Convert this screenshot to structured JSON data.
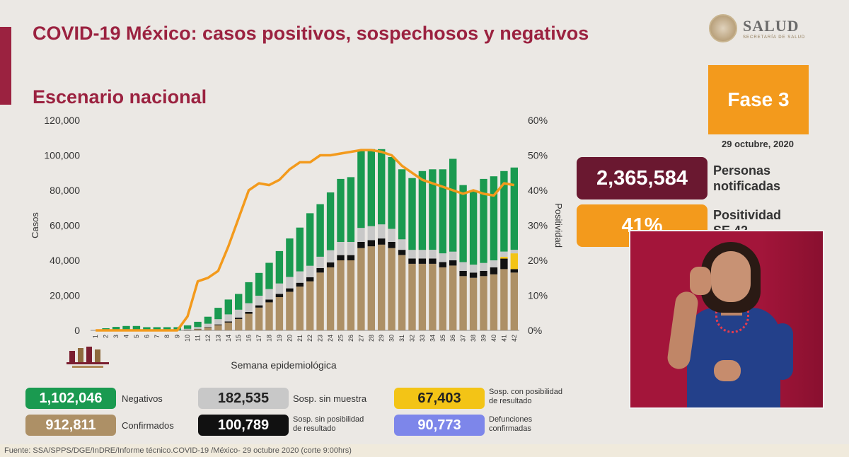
{
  "header": {
    "title": "COVID-19 México: casos positivos, sospechosos y negativos",
    "subtitle": "Escenario nacional",
    "logo_text": "SALUD",
    "logo_subtext": "SECRETARÍA DE SALUD"
  },
  "phase": {
    "label": "Fase 3",
    "date": "29 octubre, 2020"
  },
  "stats": {
    "notified_value": "2,365,584",
    "notified_label_1": "Personas",
    "notified_label_2": "notificadas",
    "positivity_value": "41%",
    "positivity_label_1": "Positividad",
    "positivity_label_2": "SE 42"
  },
  "legend": [
    {
      "value": "1,102,046",
      "label": "Negativos",
      "color": "#1a9a50"
    },
    {
      "value": "182,535",
      "label": "Sosp. sin muestra",
      "color": "#c8c8c8"
    },
    {
      "value": "67,403",
      "label_1": "Sosp. con posibilidad",
      "label_2": "de resultado",
      "color": "#f3c416"
    },
    {
      "value": "912,811",
      "label": "Confirmados",
      "color": "#ad9066"
    },
    {
      "value": "100,789",
      "label_1": "Sosp. sin posibilidad",
      "label_2": "de resultado",
      "color": "#111111"
    },
    {
      "value": "90,773",
      "label_1": "Defunciones",
      "label_2": "confirmadas",
      "color": "#7d86ea"
    }
  ],
  "footer": "Fuente: SSA/SPPS/DGE/InDRE/Informe técnico.COVID-19 /México- 29 octubre 2020 (corte 9:00hrs)",
  "colors": {
    "brand": "#9b2240",
    "phase": "#f39a1c",
    "notified_box": "#6a1830",
    "positivity_line": "#f39a1c"
  },
  "video": {
    "description_icon": "sign-language-interpreter"
  },
  "chart_data": {
    "type": "bar",
    "stacked": true,
    "xlabel": "Semana epidemiológica",
    "ylabel": "Casos",
    "y2label": "Positividad",
    "ylim": [
      0,
      120000
    ],
    "y2lim": [
      0,
      60
    ],
    "yticks": [
      "0",
      "20,000",
      "40,000",
      "60,000",
      "80,000",
      "100,000",
      "120,000"
    ],
    "y2ticks": [
      "0%",
      "10%",
      "20%",
      "30%",
      "40%",
      "50%",
      "60%"
    ],
    "categories": [
      "1",
      "2",
      "3",
      "4",
      "5",
      "6",
      "7",
      "8",
      "9",
      "10",
      "11",
      "12",
      "13",
      "14",
      "15",
      "16",
      "17",
      "18",
      "19",
      "20",
      "21",
      "22",
      "23",
      "24",
      "25",
      "26",
      "27",
      "28",
      "29",
      "30",
      "31",
      "32",
      "33",
      "34",
      "35",
      "36",
      "37",
      "38",
      "39",
      "40",
      "41",
      "42"
    ],
    "series": [
      {
        "name": "Confirmados",
        "color": "#ad9066",
        "values": [
          0,
          0,
          0,
          0,
          0,
          0,
          0,
          0,
          0,
          300,
          800,
          1600,
          3000,
          4500,
          6500,
          9500,
          13000,
          16000,
          19000,
          22000,
          25000,
          28000,
          33000,
          36000,
          40000,
          40000,
          47000,
          48000,
          49000,
          47000,
          43000,
          38000,
          38000,
          38000,
          36000,
          37000,
          31000,
          30000,
          31000,
          32000,
          35000,
          33000
        ]
      },
      {
        "name": "Sosp. sin posibilidad de resultado",
        "color": "#111111",
        "values": [
          0,
          0,
          0,
          0,
          0,
          0,
          0,
          0,
          0,
          50,
          100,
          200,
          400,
          600,
          800,
          1000,
          1300,
          1600,
          1800,
          2000,
          2200,
          2400,
          2600,
          2800,
          3000,
          3000,
          3500,
          3500,
          3500,
          3500,
          3000,
          3000,
          3000,
          3000,
          3000,
          3000,
          3000,
          3000,
          3000,
          4000,
          6000,
          2000
        ]
      },
      {
        "name": "Sosp. con posibilidad de resultado",
        "color": "#f3c416",
        "values": [
          0,
          0,
          0,
          0,
          0,
          0,
          0,
          0,
          0,
          0,
          0,
          0,
          0,
          0,
          0,
          0,
          0,
          0,
          0,
          0,
          0,
          0,
          0,
          0,
          0,
          0,
          0,
          0,
          0,
          0,
          0,
          0,
          0,
          0,
          0,
          0,
          0,
          0,
          0,
          0,
          1000,
          9000
        ]
      },
      {
        "name": "Sosp. sin muestra",
        "color": "#c8c8c8",
        "values": [
          0,
          0,
          0,
          0,
          0,
          0,
          0,
          0,
          0,
          500,
          1000,
          2000,
          3000,
          4000,
          4500,
          5000,
          5500,
          6000,
          6000,
          6500,
          6500,
          6500,
          6500,
          7000,
          7500,
          7500,
          8000,
          8000,
          8000,
          7500,
          6000,
          5000,
          5000,
          5000,
          5000,
          5000,
          5000,
          4500,
          4500,
          4000,
          3000,
          2000
        ]
      },
      {
        "name": "Negativos",
        "color": "#1a9a50",
        "values": [
          0,
          1200,
          2000,
          2500,
          2500,
          1800,
          1800,
          1800,
          1800,
          2000,
          3000,
          4000,
          6500,
          8500,
          9000,
          12000,
          13000,
          15000,
          18500,
          22000,
          25000,
          30000,
          30000,
          33000,
          36000,
          37000,
          44000,
          44000,
          43000,
          41000,
          40000,
          41000,
          45000,
          46000,
          48000,
          53000,
          44000,
          42000,
          48000,
          48000,
          46000,
          47000
        ]
      }
    ],
    "positivity": [
      0,
      0,
      0,
      0,
      0,
      0,
      0,
      0,
      0,
      4,
      14,
      15,
      17,
      24,
      32,
      40,
      42,
      41.5,
      43,
      46,
      48,
      48,
      50,
      50,
      50.5,
      51,
      51.5,
      51.5,
      51,
      50,
      47,
      45,
      43,
      42,
      41,
      40,
      39,
      40,
      39,
      38.5,
      42,
      41.5
    ]
  }
}
